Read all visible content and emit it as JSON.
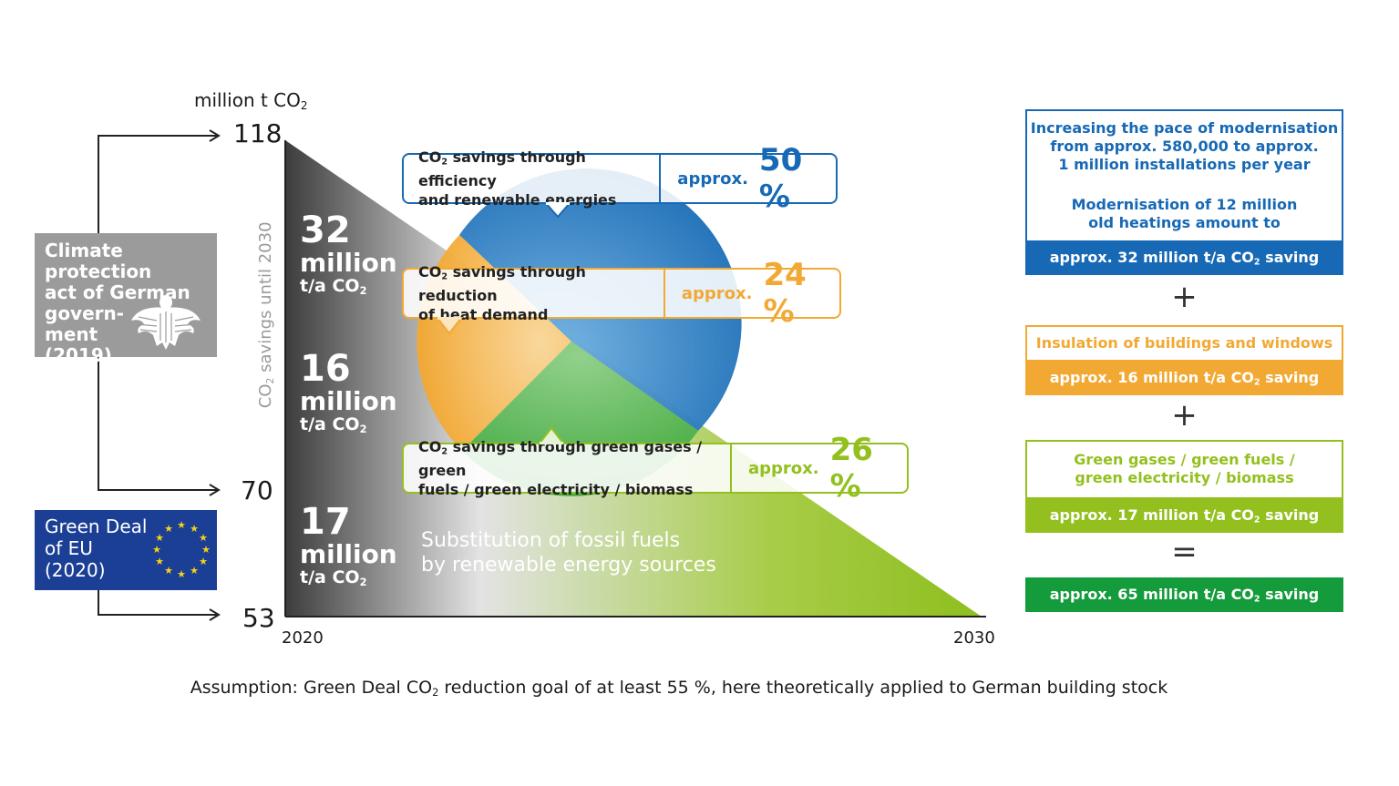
{
  "axis": {
    "unit_label_prefix": "million t CO",
    "unit_label_sub": "2",
    "y_ticks": [
      "118",
      "70",
      "53"
    ],
    "x_ticks": [
      "2020",
      "2030"
    ],
    "vertical_label_prefix": "CO",
    "vertical_label_sub": "2",
    "vertical_label_suffix": " savings until 2030"
  },
  "segments": [
    {
      "number": "32",
      "word": "million",
      "unit_prefix": "t/a CO",
      "unit_sub": "2"
    },
    {
      "number": "16",
      "word": "million",
      "unit_prefix": "t/a CO",
      "unit_sub": "2"
    },
    {
      "number": "17",
      "word": "million",
      "unit_prefix": "t/a CO",
      "unit_sub": "2"
    }
  ],
  "left_boxes": {
    "climate": {
      "lines": [
        "Climate protection",
        "act of German",
        "govern-",
        "ment",
        "(2019)"
      ],
      "icon": "eagle-icon"
    },
    "eu": {
      "lines": [
        "Green Deal",
        "of EU",
        "(2020)"
      ],
      "icon": "eu-stars-icon"
    }
  },
  "substitution_text": [
    "Substitution of fossil fuels",
    "by renewable energy sources"
  ],
  "callouts": [
    {
      "line1_prefix": "CO",
      "line1_sub": "2",
      "line1_suffix": " savings through efficiency",
      "line2": "and renewable energies",
      "approx": "approx.",
      "percent": "50 %",
      "color": "#1769b5"
    },
    {
      "line1_prefix": "CO",
      "line1_sub": "2",
      "line1_suffix": " savings through reduction",
      "line2": "of heat demand",
      "approx": "approx.",
      "percent": "24 %",
      "color": "#f2a933"
    },
    {
      "line1_prefix": "CO",
      "line1_sub": "2",
      "line1_suffix": " savings through green gases / green",
      "line2": "fuels / green electricity / biomass",
      "approx": "approx.",
      "percent": "26 %",
      "color": "#93c01f"
    }
  ],
  "right_panel": {
    "box1": {
      "lines": [
        "Increasing the pace of modernisation",
        "from approx. 580,000 to approx.",
        "1 million installations per year"
      ],
      "lines2": [
        "Modernisation of 12 million",
        "old heatings amount to"
      ],
      "bar": "approx. 32 million t/a CO",
      "bar_suffix": "saving",
      "color": "#1769b5"
    },
    "op1": "+",
    "box2": {
      "lines": [
        "Insulation of buildings and windows"
      ],
      "bar": "approx. 16 million t/a CO",
      "bar_suffix": "saving",
      "color": "#f2a933"
    },
    "op2": "+",
    "box3": {
      "lines": [
        "Green gases / green fuels /",
        "green electricity / biomass"
      ],
      "bar": "approx. 17 million t/a CO",
      "bar_suffix": "saving",
      "color": "#93c01f"
    },
    "op3": "=",
    "total": {
      "bar": "approx. 65 million t/a CO",
      "bar_suffix": "saving",
      "color": "#149b3c"
    }
  },
  "footnote": {
    "prefix": "Assumption: Green Deal CO",
    "sub": "2",
    "suffix": " reduction goal of at least 55 %, here theoretically applied to German building stock"
  }
}
